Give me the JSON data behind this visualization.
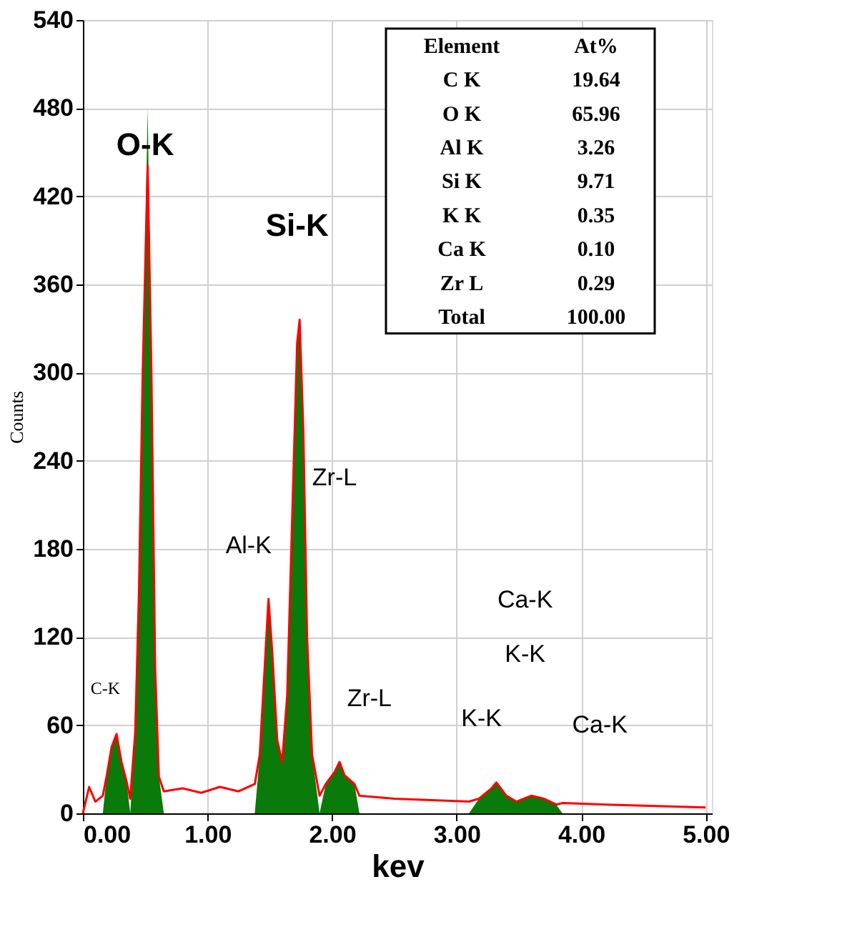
{
  "chart_data": {
    "type": "area",
    "xlabel": "kev",
    "ylabel": "Counts",
    "x": [
      0.0,
      0.05,
      0.1,
      0.16,
      0.19,
      0.23,
      0.27,
      0.31,
      0.35,
      0.38,
      0.42,
      0.45,
      0.48,
      0.52,
      0.55,
      0.58,
      0.61,
      0.65,
      0.8,
      0.95,
      1.1,
      1.25,
      1.38,
      1.42,
      1.46,
      1.49,
      1.52,
      1.56,
      1.6,
      1.64,
      1.68,
      1.72,
      1.74,
      1.77,
      1.8,
      1.84,
      1.9,
      1.95,
      2.02,
      2.06,
      2.1,
      2.18,
      2.22,
      2.5,
      2.8,
      3.1,
      3.18,
      3.28,
      3.32,
      3.4,
      3.48,
      3.6,
      3.7,
      3.8,
      3.85,
      4.2,
      4.6,
      5.0
    ],
    "series": [
      {
        "type": "line",
        "color": "#ff0000",
        "values": [
          0,
          18,
          8,
          12,
          25,
          45,
          54,
          35,
          22,
          10,
          55,
          150,
          300,
          441,
          300,
          100,
          25,
          15,
          17,
          14,
          18,
          15,
          20,
          40,
          100,
          146,
          110,
          50,
          35,
          80,
          200,
          320,
          336,
          260,
          120,
          40,
          12,
          20,
          28,
          35,
          26,
          20,
          12,
          10,
          9,
          8,
          10,
          17,
          21,
          12,
          8,
          12,
          10,
          6,
          7,
          6,
          5,
          4
        ]
      },
      {
        "color": "#0a7a0a",
        "values": [
          0,
          0,
          0,
          0,
          25,
          45,
          54,
          35,
          22,
          0,
          55,
          150,
          300,
          480,
          300,
          100,
          25,
          0,
          0,
          0,
          0,
          0,
          0,
          40,
          100,
          146,
          110,
          50,
          35,
          80,
          200,
          320,
          336,
          260,
          120,
          40,
          0,
          20,
          28,
          35,
          26,
          20,
          0,
          0,
          0,
          0,
          10,
          17,
          21,
          12,
          8,
          12,
          10,
          6,
          0,
          0,
          0,
          0
        ]
      }
    ],
    "xlim": [
      0,
      5.05
    ],
    "xticks": [
      {
        "value": 0,
        "label": "0.00"
      },
      {
        "value": 1,
        "label": "1.00"
      },
      {
        "value": 2,
        "label": "2.00"
      },
      {
        "value": 3,
        "label": "3.00"
      },
      {
        "value": 4,
        "label": "4.00"
      },
      {
        "value": 5,
        "label": "5.00"
      }
    ],
    "ylim": [
      0,
      540
    ],
    "yticks": [
      0,
      60,
      120,
      180,
      240,
      300,
      360,
      420,
      480,
      540
    ],
    "grid": true,
    "annotations": [
      "O-K",
      "Si-K",
      "Al-K",
      "Zr-L",
      "C-K",
      "Zr-L",
      "K-K",
      "K-K",
      "Ca-K",
      "Ca-K",
      "Element",
      "At%",
      "C K",
      "19.64",
      "O K",
      "65.96",
      "Al K",
      "3.26",
      "Si K",
      "9.71",
      "K K",
      "0.35",
      "Ca K",
      "0.10",
      "Zr L",
      "0.29",
      "Total",
      "100.00"
    ]
  }
}
